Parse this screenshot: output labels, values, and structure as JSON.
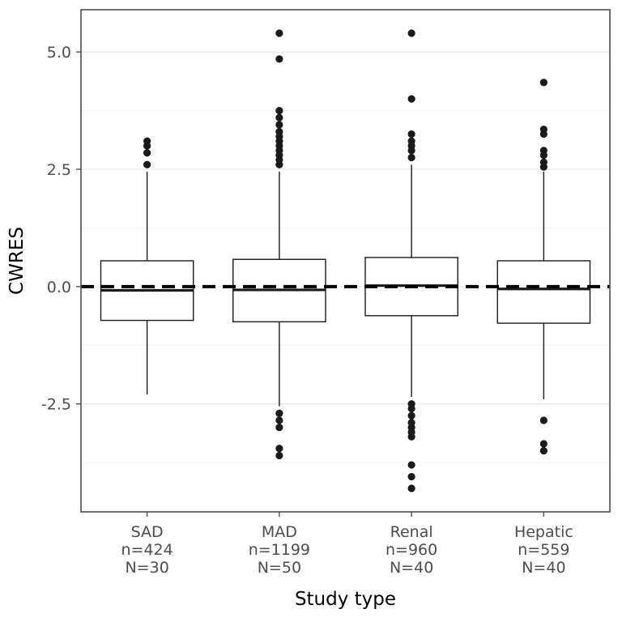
{
  "chart_data": {
    "type": "boxplot",
    "title": "",
    "xlabel": "Study type",
    "ylabel": "CWRES",
    "ylim": [
      -4.8,
      5.9
    ],
    "yticks": [
      5.0,
      2.5,
      0.0,
      -2.5
    ],
    "ytick_labels": [
      "5.0",
      "2.5",
      "0.0",
      "-2.5"
    ],
    "yticks_minor": [
      -3.75,
      -1.25,
      1.25,
      3.75
    ],
    "grid": true,
    "legend": "none",
    "reference_line": {
      "y": 0.0,
      "style": "dashed",
      "color": "#000000"
    },
    "categories": [
      "SAD",
      "MAD",
      "Renal",
      "Hepatic"
    ],
    "series": [
      {
        "label": "SAD",
        "lines": [
          "SAD",
          "n=424",
          "N=30"
        ],
        "n": 424,
        "N": 30,
        "q1": -0.72,
        "median": -0.08,
        "q3": 0.55,
        "whisker_low": -2.3,
        "whisker_high": 2.45,
        "outliers": [
          2.6,
          2.85,
          3.0,
          3.1
        ]
      },
      {
        "label": "MAD",
        "lines": [
          "MAD",
          "n=1199",
          "N=50"
        ],
        "n": 1199,
        "N": 50,
        "q1": -0.75,
        "median": -0.07,
        "q3": 0.58,
        "whisker_low": -2.55,
        "whisker_high": 2.45,
        "outliers": [
          5.4,
          4.85,
          3.75,
          3.6,
          3.45,
          3.3,
          3.2,
          3.1,
          3.0,
          2.9,
          2.8,
          2.7,
          2.6,
          -2.7,
          -2.85,
          -3.0,
          -3.45,
          -3.6
        ]
      },
      {
        "label": "Renal",
        "lines": [
          "Renal",
          "n=960",
          "N=40"
        ],
        "n": 960,
        "N": 40,
        "q1": -0.62,
        "median": 0.02,
        "q3": 0.62,
        "whisker_low": -2.35,
        "whisker_high": 2.6,
        "outliers": [
          5.4,
          4.0,
          3.25,
          3.1,
          3.0,
          2.9,
          2.75,
          -2.5,
          -2.6,
          -2.75,
          -2.9,
          -3.0,
          -3.1,
          -3.2,
          -3.8,
          -4.05,
          -4.3
        ]
      },
      {
        "label": "Hepatic",
        "lines": [
          "Hepatic",
          "n=559",
          "N=40"
        ],
        "n": 559,
        "N": 40,
        "q1": -0.78,
        "median": -0.05,
        "q3": 0.55,
        "whisker_low": -2.4,
        "whisker_high": 2.45,
        "outliers": [
          4.35,
          3.35,
          3.25,
          2.9,
          2.8,
          2.65,
          2.55,
          -2.85,
          -3.35,
          -3.5
        ]
      }
    ]
  },
  "colors": {
    "box_stroke": "#1a1a1a",
    "outlier_fill": "#1a1a1a",
    "panel_border": "#4d4d4d",
    "tick_text": "#4d4d4d",
    "axis_title_text": "#000000",
    "major_grid": "#e8e8e8",
    "minor_grid": "#f3f3f3",
    "panel_background": "#ffffff",
    "reference_line": "#000000"
  }
}
